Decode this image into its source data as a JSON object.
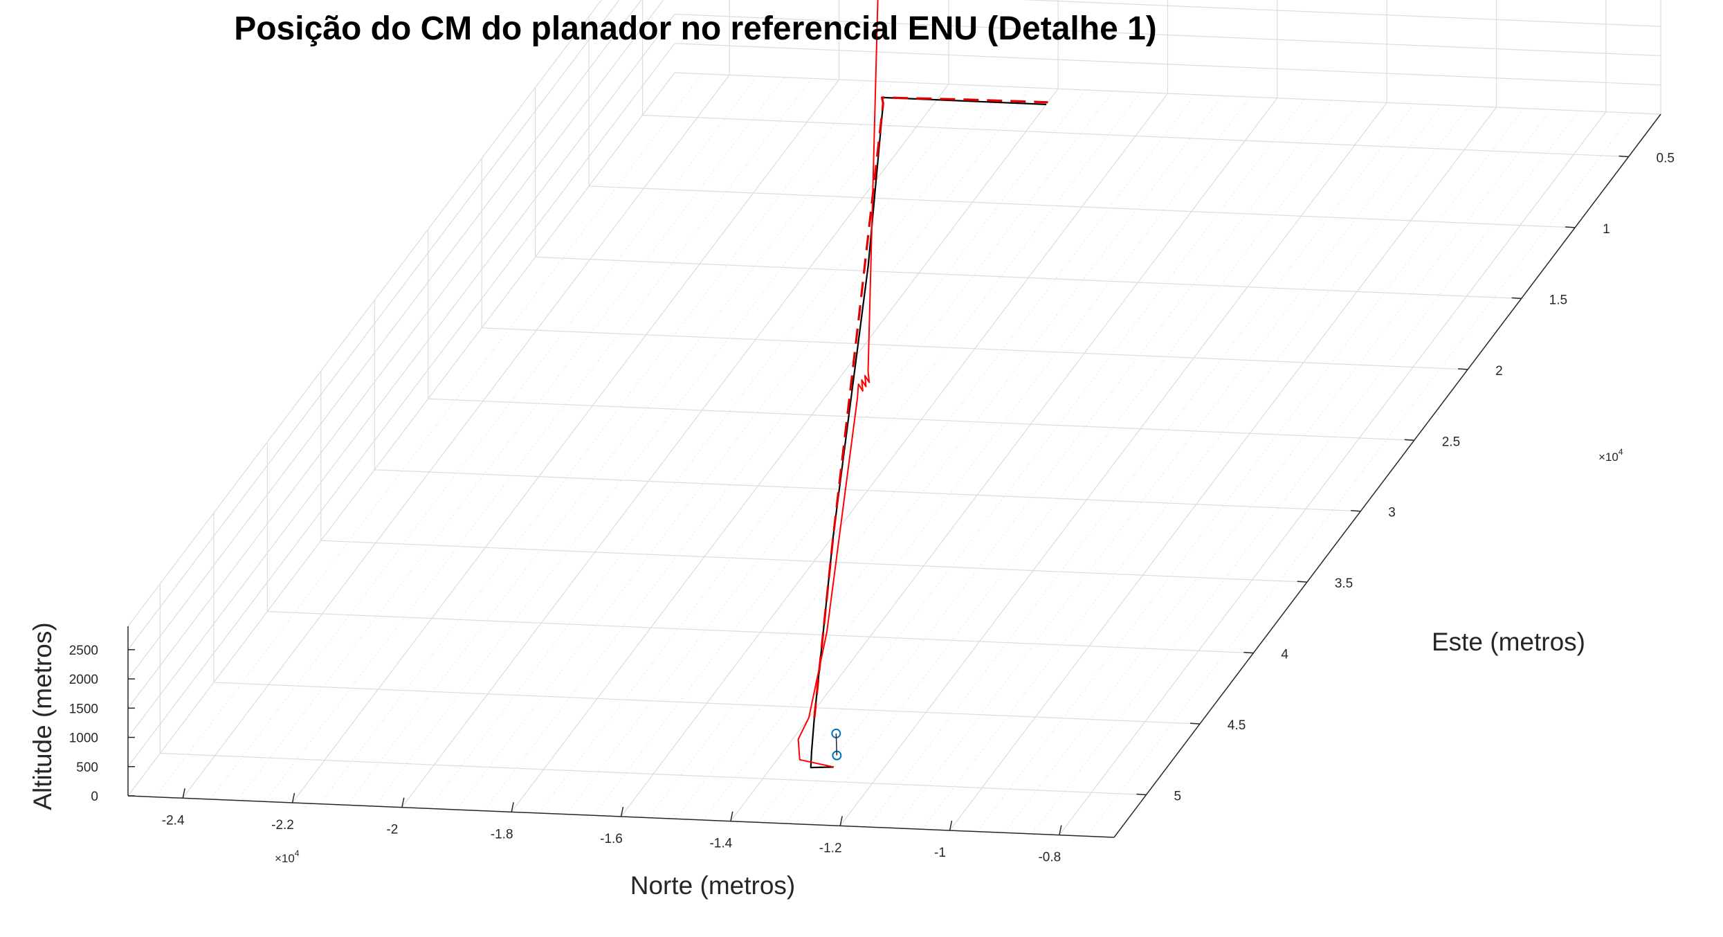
{
  "chart_data": {
    "type": "line3d",
    "title": "Posição do CM do planador no referencial ENU (Detalhe 1)",
    "xlabel": "Norte (metros)",
    "ylabel": "Este (metros)",
    "zlabel": "Altitude (metros)",
    "x_ticks": [
      "-2.4",
      "-2.2",
      "-2",
      "-1.8",
      "-1.6",
      "-1.4",
      "-1.2",
      "-1",
      "-0.8"
    ],
    "x_multiplier": "×10",
    "x_multiplier_exp": "4",
    "y_ticks": [
      "0.5",
      "1",
      "1.5",
      "2",
      "2.5",
      "3",
      "3.5",
      "4",
      "4.5",
      "5"
    ],
    "y_multiplier": "×10",
    "y_multiplier_exp": "4",
    "z_ticks": [
      "0",
      "500",
      "1000",
      "1500",
      "2000",
      "2500"
    ],
    "xlim": [
      -25000,
      -7000
    ],
    "ylim": [
      2000,
      53000
    ],
    "zlim": [
      0,
      2900
    ],
    "grid": true,
    "minor_grid": true,
    "colors": {
      "reference": "#000000",
      "dashed": "#e00000",
      "actual": "#ff0000",
      "markers": "#0072bd"
    },
    "series": [
      {
        "style": "black-solid",
        "points": [
          [
            -12900,
            49000,
            0
          ],
          [
            -13300,
            49100,
            0
          ],
          [
            -13500,
            48000,
            0
          ],
          [
            -13900,
            45700,
            0
          ],
          [
            -16000,
            33200,
            0
          ],
          [
            -19000,
            14600,
            0
          ],
          [
            -20900,
            3500,
            0
          ],
          [
            -21000,
            3100,
            0
          ],
          [
            -19500,
            3100,
            0
          ],
          [
            -18000,
            3100,
            0
          ]
        ]
      },
      {
        "style": "red-dashed",
        "points": [
          [
            -13900,
            45700,
            0
          ],
          [
            -16000,
            33200,
            0
          ],
          [
            -18500,
            18000,
            0
          ],
          [
            -20900,
            3500,
            0
          ],
          [
            -21000,
            3100,
            0
          ],
          [
            -19500,
            3000,
            0
          ],
          [
            -18000,
            2950,
            0
          ]
        ]
      },
      {
        "style": "red-solid",
        "points": [
          [
            -12900,
            49000,
            0
          ],
          [
            -13600,
            48600,
            0
          ],
          [
            -13900,
            47200,
            0
          ],
          [
            -14000,
            45700,
            0
          ],
          [
            -14200,
            43000,
            800
          ],
          [
            -15500,
            33500,
            2450
          ],
          [
            -15550,
            33150,
            2600
          ],
          [
            -15500,
            33000,
            2450
          ],
          [
            -15550,
            32850,
            2600
          ],
          [
            -15500,
            32700,
            2450
          ],
          [
            -15550,
            32550,
            2600
          ],
          [
            -15500,
            32400,
            2450
          ],
          [
            -15550,
            32250,
            2600
          ],
          [
            -20900,
            3900,
            2600
          ],
          [
            -21000,
            3550,
            2750
          ],
          [
            -20900,
            3350,
            2600
          ],
          [
            -21000,
            3150,
            2750
          ],
          [
            -20900,
            2950,
            2600
          ],
          [
            -21000,
            2750,
            2750
          ],
          [
            -20900,
            2550,
            2600
          ],
          [
            -21000,
            2350,
            2750
          ],
          [
            -21000,
            2650,
            2600
          ],
          [
            -18000,
            2550,
            2400
          ]
        ]
      }
    ],
    "markers": [
      [
        -13150,
        47500,
        200
      ],
      [
        -13000,
        48200,
        0
      ]
    ]
  }
}
